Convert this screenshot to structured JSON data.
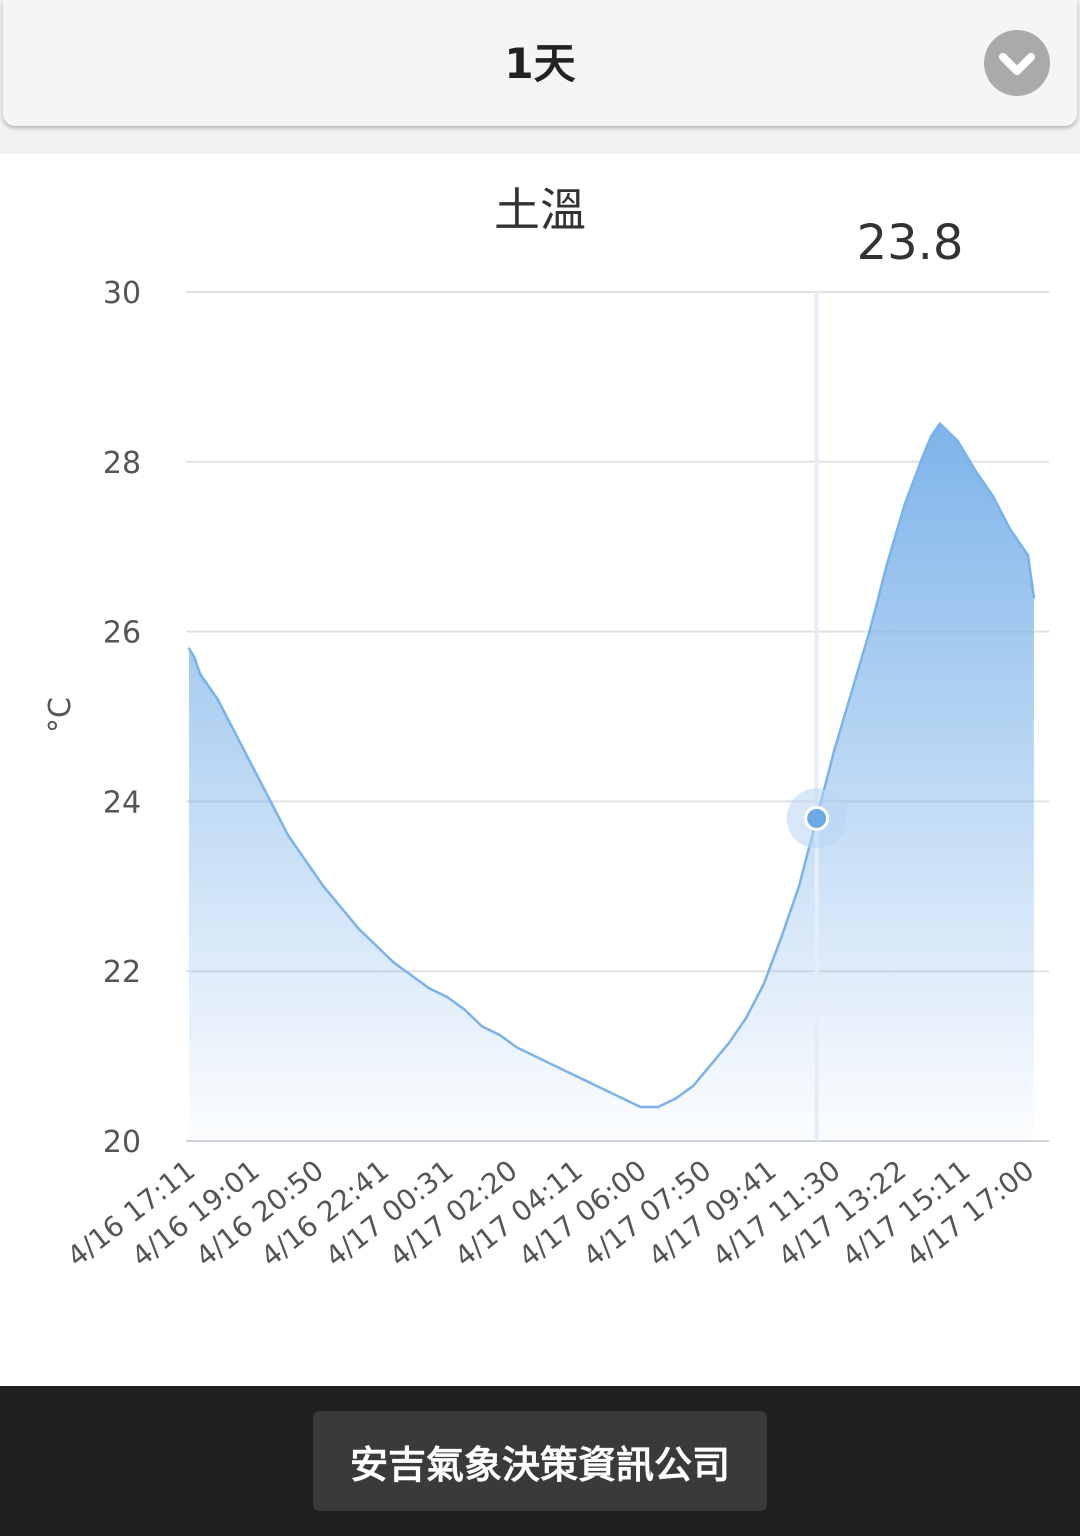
{
  "header": {
    "range_label": "1天",
    "dropdown_icon": "chevron-down-icon"
  },
  "chart_data": {
    "type": "area",
    "title": "土溫",
    "ylabel": "°C",
    "ylim": [
      20,
      30
    ],
    "yticks": [
      20,
      22,
      24,
      26,
      28,
      30
    ],
    "grid": true,
    "xticks": [
      "4/16 17:11",
      "4/16 19:01",
      "4/16 20:50",
      "4/16 22:41",
      "4/17 00:31",
      "4/17 02:20",
      "4/17 04:11",
      "4/17 06:00",
      "4/17 07:50",
      "4/17 09:41",
      "4/17 11:30",
      "4/17 13:22",
      "4/17 15:11",
      "4/17 17:00"
    ],
    "x": [
      "4/16 17:11",
      "4/16 17:20",
      "4/16 17:30",
      "4/16 17:45",
      "4/16 18:00",
      "4/16 18:15",
      "4/16 18:30",
      "4/16 19:00",
      "4/16 19:30",
      "4/16 20:00",
      "4/16 20:30",
      "4/16 21:00",
      "4/16 21:30",
      "4/16 22:00",
      "4/16 22:30",
      "4/16 23:00",
      "4/16 23:30",
      "4/17 00:00",
      "4/17 00:30",
      "4/17 01:00",
      "4/17 01:30",
      "4/17 02:00",
      "4/17 02:30",
      "4/17 03:00",
      "4/17 03:30",
      "4/17 04:00",
      "4/17 04:30",
      "4/17 05:00",
      "4/17 05:30",
      "4/17 06:00",
      "4/17 06:30",
      "4/17 07:00",
      "4/17 07:30",
      "4/17 08:00",
      "4/17 08:30",
      "4/17 09:00",
      "4/17 09:30",
      "4/17 10:00",
      "4/17 10:30",
      "4/17 11:00",
      "4/17 11:30",
      "4/17 12:00",
      "4/17 12:30",
      "4/17 13:00",
      "4/17 13:30",
      "4/17 14:00",
      "4/17 14:15",
      "4/17 14:30",
      "4/17 15:00",
      "4/17 15:30",
      "4/17 16:00",
      "4/17 16:30",
      "4/17 17:00",
      "4/17 17:10"
    ],
    "series": [
      {
        "values": [
          25.8,
          25.7,
          25.5,
          25.35,
          25.2,
          25.0,
          24.8,
          24.4,
          24.0,
          23.6,
          23.3,
          23.0,
          22.75,
          22.5,
          22.3,
          22.1,
          21.95,
          21.8,
          21.7,
          21.55,
          21.35,
          21.25,
          21.1,
          21.0,
          20.9,
          20.8,
          20.7,
          20.6,
          20.5,
          20.4,
          20.4,
          20.5,
          20.65,
          20.9,
          21.15,
          21.45,
          21.85,
          22.4,
          23.0,
          23.8,
          24.6,
          25.3,
          26.0,
          26.8,
          27.5,
          28.05,
          28.3,
          28.45,
          28.25,
          27.9,
          27.6,
          27.2,
          26.9,
          26.4
        ]
      }
    ],
    "highlight": {
      "x": "4/17 11:00",
      "value": 23.8,
      "label": "23.8"
    },
    "colors": {
      "line": "#7ab3ea",
      "fill": "#7eb4ea",
      "grid": "#e2e2e2",
      "crosshair": "#e5eef8"
    }
  },
  "footer": {
    "company_label": "安吉氣象決策資訊公司"
  }
}
